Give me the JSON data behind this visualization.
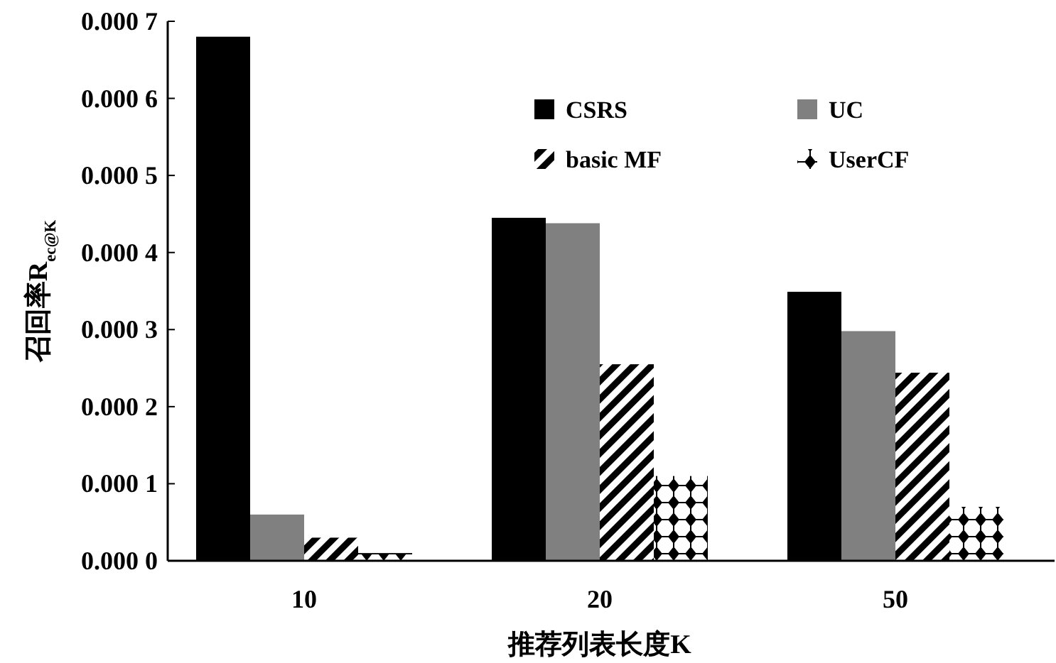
{
  "chart_data": {
    "type": "bar",
    "xlabel": "推荐列表长度K",
    "ylabel": "召回率R$_{ec@K}$",
    "categories": [
      "10",
      "20",
      "50"
    ],
    "series": [
      {
        "name": "CSRS",
        "color": "#000000",
        "values": [
          0.00068,
          0.000445,
          0.000349
        ]
      },
      {
        "name": "UC",
        "color": "#808080",
        "values": [
          6e-05,
          0.000438,
          0.000298
        ]
      },
      {
        "name": "basic MF",
        "color": "#000000",
        "values": [
          3e-05,
          0.000255,
          0.000244
        ]
      },
      {
        "name": "UserCF",
        "color": "#000000",
        "values": [
          1e-05,
          0.00011,
          7e-05
        ]
      }
    ],
    "ylim": [
      0,
      0.0007
    ],
    "yticks": [
      {
        "value": 0,
        "label": "0.000 0"
      },
      0.0001,
      0.0002,
      0.0003,
      0.0004,
      0.0005,
      0.0006,
      0.0007
    ],
    "grid": false,
    "legend": "top right"
  }
}
